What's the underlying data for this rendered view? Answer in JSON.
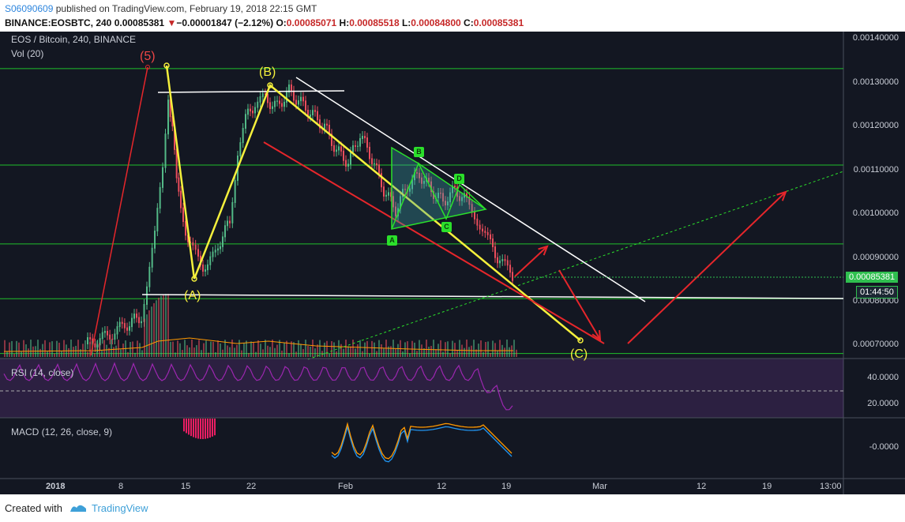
{
  "header": {
    "author": "S06090609",
    "published": " published on TradingView.com, February 19, 2018 22:15 GMT",
    "symbol": "BINANCE:EOSBTC, 240",
    "last": "0.00085381",
    "change_arrow": "▼",
    "change": "−0.00001847 (−2.12%)",
    "o_label": "O:",
    "o_value": "0.00085071",
    "h_label": "H:",
    "h_value": "0.00085518",
    "l_label": "L:",
    "l_value": "0.00084800",
    "c_label": "C:",
    "c_value": "0.00085381"
  },
  "chart": {
    "title": "EOS / Bitcoin, 240, BINANCE",
    "volume_label": "Vol (20)",
    "rsi_label": "RSI (14, close)",
    "macd_label": "MACD (12, 26, close, 9)",
    "price_ticks": [
      "0.00140000",
      "0.00130000",
      "0.00120000",
      "0.00110000",
      "0.00100000",
      "0.00090000",
      "0.00080000",
      "0.00070000"
    ],
    "last_price_badge": "0.00085381",
    "countdown_badge": "01:44:50",
    "rsi_ticks": [
      "40.0000",
      "20.0000"
    ],
    "macd_ticks": [
      "-0.0000"
    ],
    "x_ticks": [
      "2018",
      "8",
      "15",
      "22",
      "Feb",
      "12",
      "19",
      "Mar",
      "12",
      "19",
      "13:00"
    ],
    "wave_labels": {
      "five": "(5)",
      "a": "(A)",
      "b": "(B)",
      "c": "(C)"
    },
    "triangle_labels": [
      "A",
      "B",
      "C",
      "D"
    ],
    "colors": {
      "background": "#131722",
      "up_candle": "#53b987",
      "down_candle": "#eb4d5c",
      "support_lines": "#1fbf2b",
      "wave_lines": "#f5f03c",
      "arrows": "#e6262b",
      "rsi": "#9c27b0",
      "macd": "#2196f3",
      "signal": "#ff9800"
    }
  },
  "chart_data": {
    "type": "candlestick",
    "symbol": "EOS / Bitcoin",
    "exchange": "BINANCE",
    "interval": "240",
    "ylim": [
      0.00066,
      0.0014
    ],
    "last_price": 0.00085381,
    "horizontal_levels": [
      0.00133,
      0.00111,
      0.00093,
      0.000805,
      0.00068
    ],
    "x": [
      "2018",
      "8",
      "15",
      "22",
      "Feb",
      "12",
      "19",
      "Mar",
      "12",
      "19",
      "13:00"
    ],
    "indicators": [
      "Vol (20)",
      "RSI (14, close)",
      "MACD (12, 26, close, 9)"
    ]
  },
  "footer": {
    "created_with": "Created with",
    "brand": "TradingView"
  }
}
